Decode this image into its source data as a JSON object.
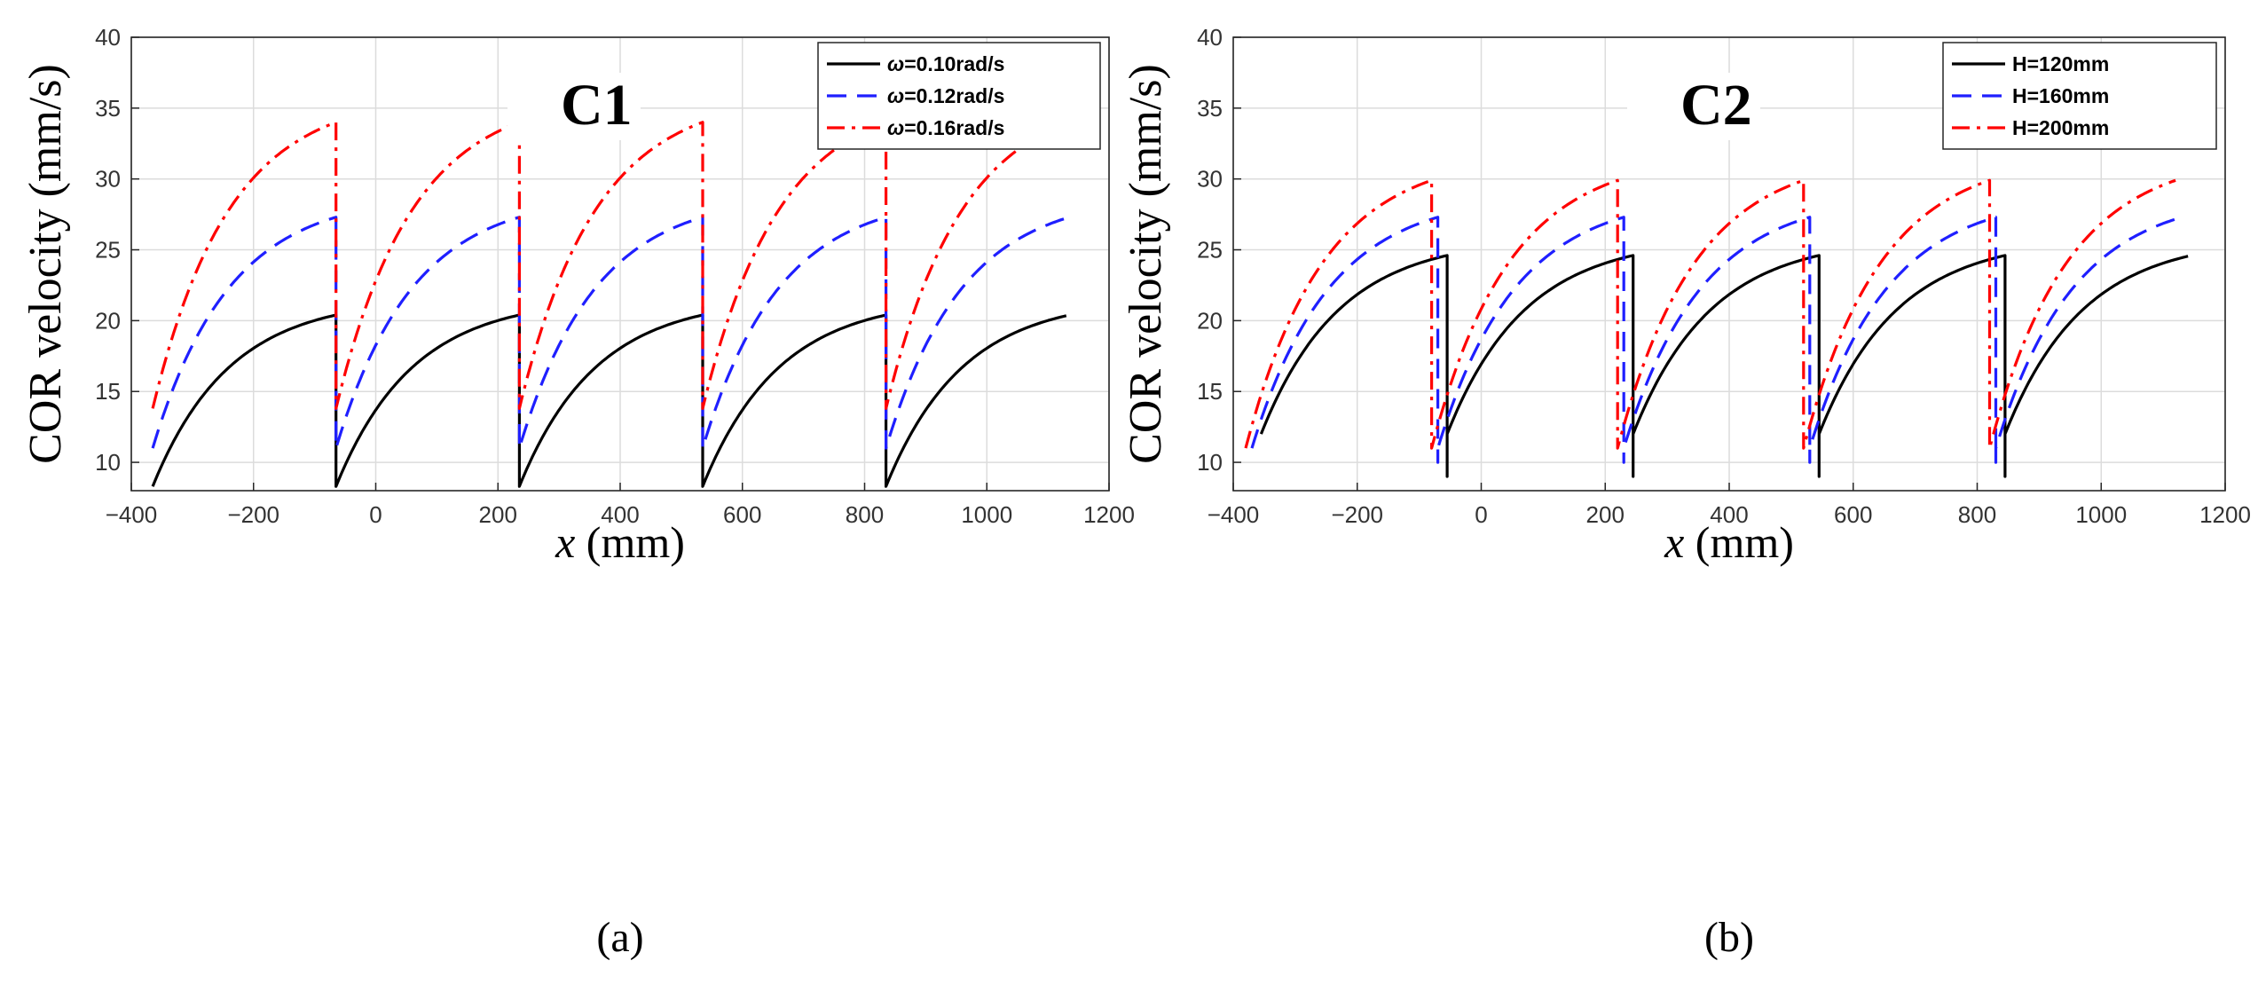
{
  "chart_data": [
    {
      "type": "line",
      "panel_label": "(a)",
      "case_label": "C1",
      "ylabel": "COR velocity (mm/s)",
      "xlabel_symbol": "x",
      "xlabel_unit": "(mm)",
      "xlim": [
        -400,
        1200
      ],
      "ylim": [
        8,
        40
      ],
      "xticks": [
        -400,
        -200,
        0,
        200,
        400,
        600,
        800,
        1000,
        1200
      ],
      "xtick_labels": [
        "−400",
        "−200",
        "0",
        "200",
        "400",
        "600",
        "800",
        "1000",
        "1200"
      ],
      "yticks": [
        10,
        15,
        20,
        25,
        30,
        35,
        40
      ],
      "ytick_labels": [
        "10",
        "15",
        "20",
        "25",
        "30",
        "35",
        "40"
      ],
      "grid": true,
      "legend_position": "top-right",
      "period_mm": 300,
      "cycle_starts": [
        -365,
        -65,
        235,
        535,
        835
      ],
      "cycle_end": 1130,
      "series": [
        {
          "symbol": "ω",
          "label_rest": "=0.10rad/s",
          "color": "#000000",
          "dash": "solid",
          "start_value": 8.3,
          "end_value": 20.4,
          "curvature": 2.4
        },
        {
          "symbol": "ω",
          "label_rest": "=0.12rad/s",
          "color": "#1f1fff",
          "dash": "dashed",
          "start_value": 11.0,
          "end_value": 27.3,
          "curvature": 2.4
        },
        {
          "symbol": "ω",
          "label_rest": "=0.16rad/s",
          "color": "#ff0000",
          "dash": "dashdot",
          "start_value": 13.8,
          "end_value": 34.0,
          "curvature": 2.4
        }
      ]
    },
    {
      "type": "line",
      "panel_label": "(b)",
      "case_label": "C2",
      "ylabel": "COR velocity (mm/s)",
      "xlabel_symbol": "x",
      "xlabel_unit": "(mm)",
      "xlim": [
        -400,
        1200
      ],
      "ylim": [
        8,
        40
      ],
      "xticks": [
        -400,
        -200,
        0,
        200,
        400,
        600,
        800,
        1000,
        1200
      ],
      "xtick_labels": [
        "−400",
        "−200",
        "0",
        "200",
        "400",
        "600",
        "800",
        "1000",
        "1200"
      ],
      "yticks": [
        10,
        15,
        20,
        25,
        30,
        35,
        40
      ],
      "ytick_labels": [
        "10",
        "15",
        "20",
        "25",
        "30",
        "35",
        "40"
      ],
      "grid": true,
      "legend_position": "top-right",
      "period_mm": 300,
      "series": [
        {
          "symbol": "",
          "label_rest": "H=120mm",
          "color": "#000000",
          "dash": "solid",
          "cycle_starts": [
            -355,
            -55,
            245,
            545,
            845
          ],
          "cycle_end": 1140,
          "start_value": 12.0,
          "drop_value": 9.0,
          "end_value": 24.6,
          "curvature": 2.4
        },
        {
          "symbol": "",
          "label_rest": "H=160mm",
          "color": "#1f1fff",
          "dash": "dashed",
          "cycle_starts": [
            -370,
            -70,
            230,
            530,
            830
          ],
          "cycle_end": 1135,
          "start_value": 11.0,
          "drop_value": 10.0,
          "end_value": 27.3,
          "curvature": 2.4
        },
        {
          "symbol": "",
          "label_rest": "H=200mm",
          "color": "#ff0000",
          "dash": "dashdot",
          "cycle_starts": [
            -380,
            -80,
            220,
            520,
            820
          ],
          "cycle_end": 1120,
          "start_value": 11.0,
          "drop_value": 11.0,
          "end_value": 29.9,
          "curvature": 2.4
        }
      ]
    }
  ]
}
